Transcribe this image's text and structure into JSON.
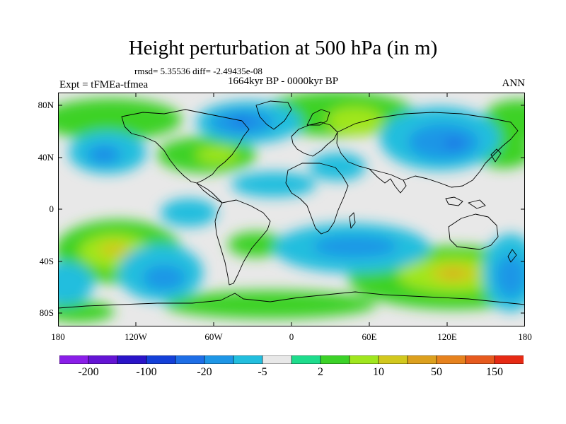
{
  "title": "Height perturbation at 500 hPa (in m)",
  "stats": "rmsd= 5.35536 diff= -2.49435e-08",
  "period": "1664kyr BP - 0000kyr BP",
  "expt": "Expt = tFMEa-tfmea",
  "season": "ANN",
  "lat_ticks": [
    "80N",
    "40N",
    "0",
    "40S",
    "80S"
  ],
  "lon_ticks": [
    "180",
    "120W",
    "60W",
    "0",
    "60E",
    "120E",
    "180"
  ],
  "colorbar": {
    "colors": [
      "#8a1ee8",
      "#6414d4",
      "#2a14c8",
      "#1440d8",
      "#1e6ee6",
      "#1e96e6",
      "#22bede",
      "#e8e8e8",
      "#1edc8c",
      "#3cd228",
      "#a0e61e",
      "#d2c81e",
      "#dca01e",
      "#e6821e",
      "#e65a1e",
      "#e62a14"
    ],
    "labels": [
      "-200",
      "-100",
      "-20",
      "-5",
      "2",
      "10",
      "50",
      "150"
    ]
  }
}
